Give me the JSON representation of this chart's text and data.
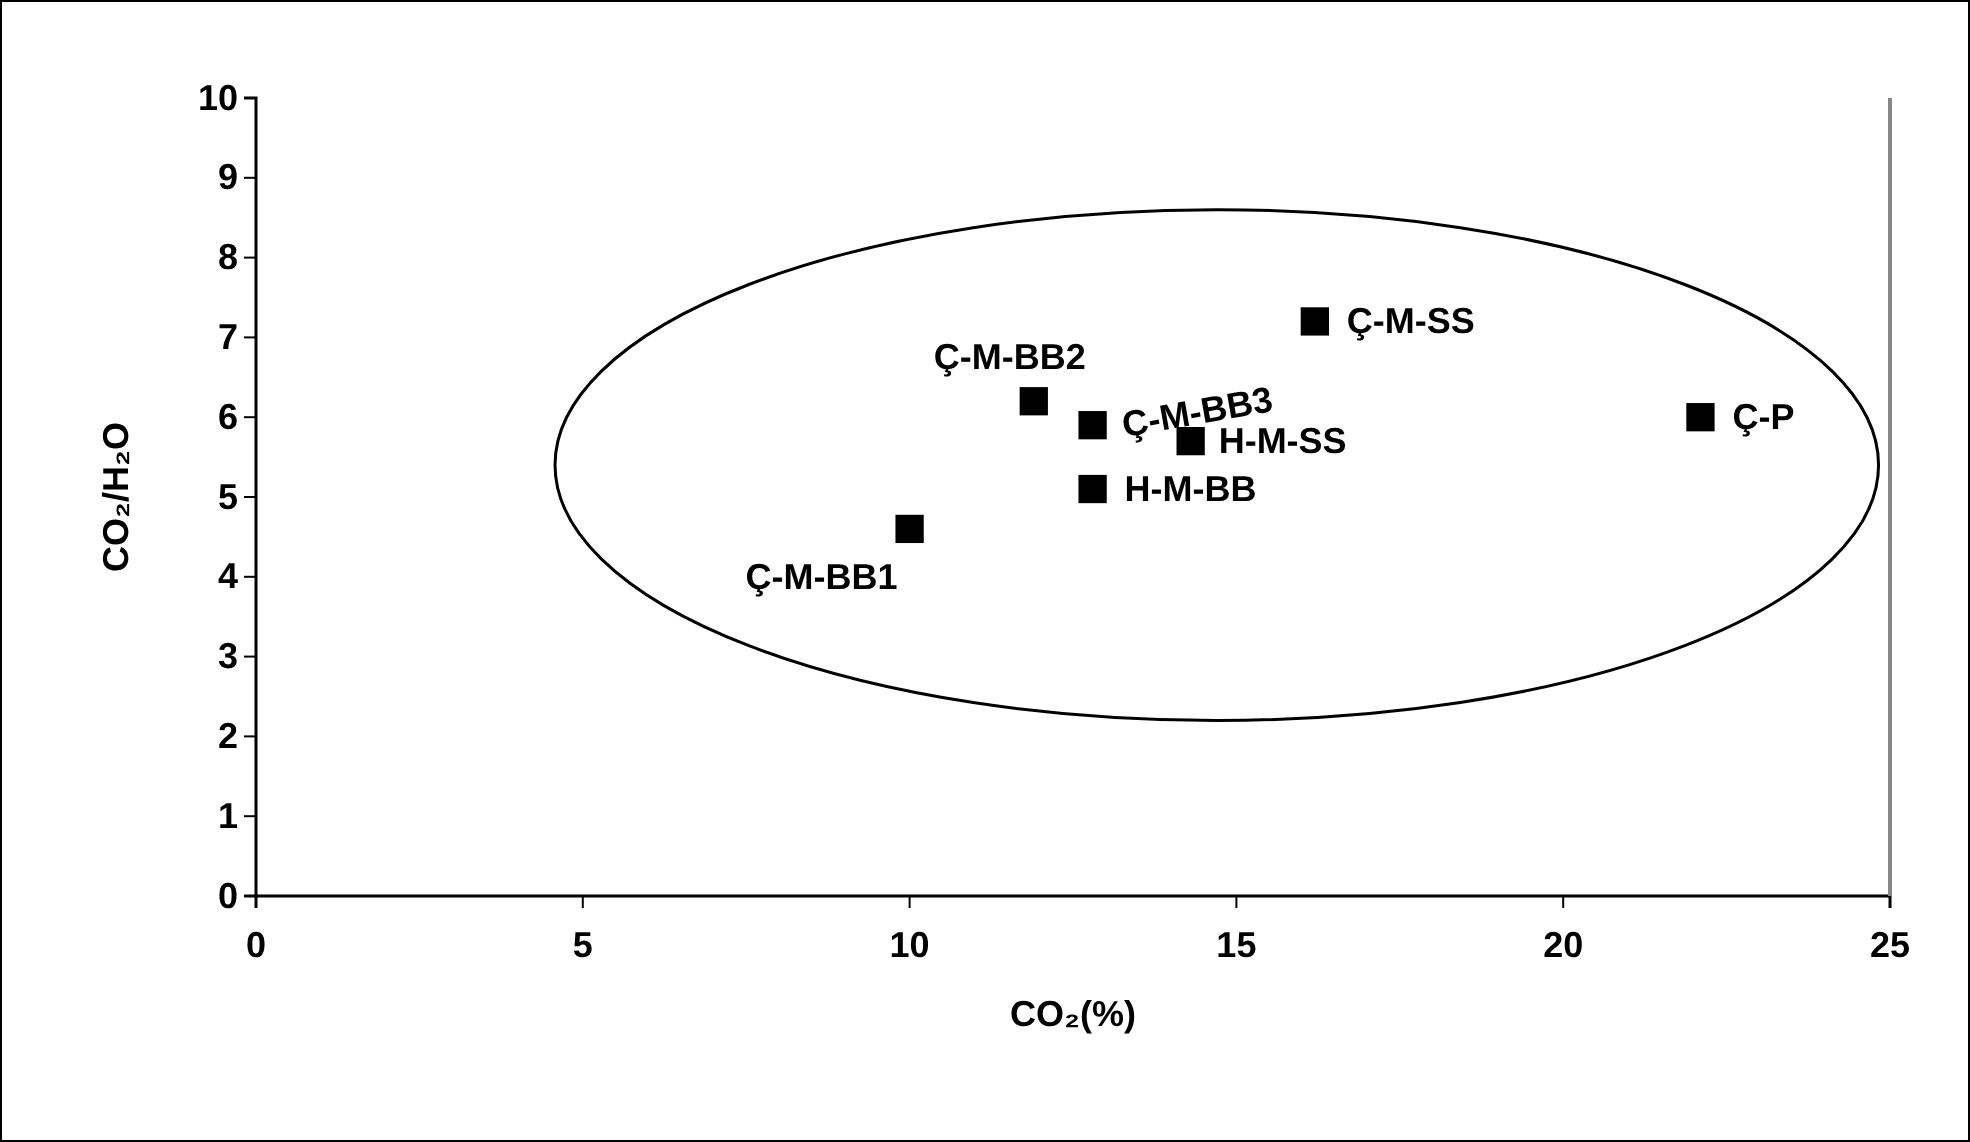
{
  "chart_data": {
    "type": "scatter",
    "xlabel": "CO₂(%)",
    "ylabel": "CO₂/H₂O",
    "xlim": [
      0,
      25
    ],
    "xticks": [
      0,
      5,
      10,
      15,
      20,
      25
    ],
    "ylim": [
      0,
      10
    ],
    "yticks": [
      0,
      1,
      2,
      3,
      4,
      5,
      6,
      7,
      8,
      9,
      10
    ],
    "grid": false,
    "marker": "square",
    "series": [
      {
        "name": "Ç-M-BB1",
        "color": "#000000",
        "x": [
          10.0
        ],
        "values": [
          4.6
        ]
      },
      {
        "name": "Ç-M-BB2",
        "color": "#000000",
        "x": [
          11.9
        ],
        "values": [
          6.2
        ]
      },
      {
        "name": "Ç-M-BB3",
        "color": "#000000",
        "x": [
          12.8
        ],
        "values": [
          5.9
        ]
      },
      {
        "name": "H-M-BB",
        "color": "#000000",
        "x": [
          12.8
        ],
        "values": [
          5.1
        ]
      },
      {
        "name": "H-M-SS",
        "color": "#000000",
        "x": [
          14.3
        ],
        "values": [
          5.7
        ]
      },
      {
        "name": "Ç-M-SS",
        "color": "#000000",
        "x": [
          16.2
        ],
        "values": [
          7.2
        ]
      },
      {
        "name": "Ç-P",
        "color": "#000000",
        "x": [
          22.1
        ],
        "values": [
          6.0
        ]
      }
    ]
  }
}
